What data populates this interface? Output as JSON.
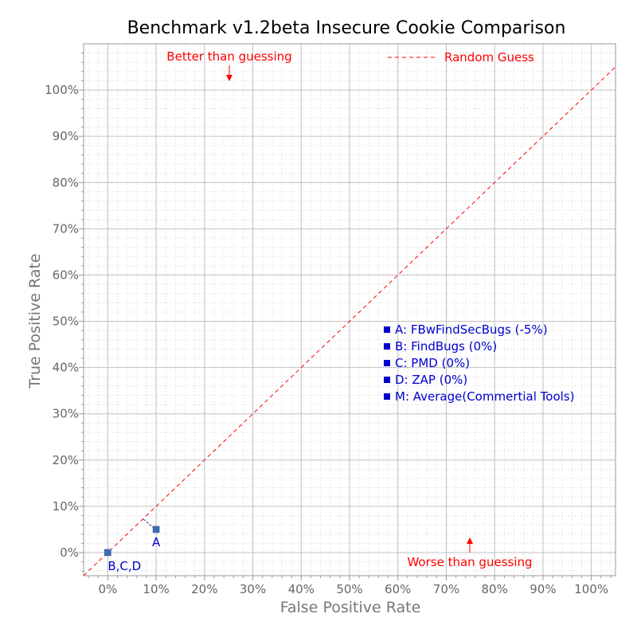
{
  "chart_data": {
    "type": "scatter",
    "title": "Benchmark v1.2beta Insecure Cookie Comparison",
    "xlabel": "False Positive Rate",
    "ylabel": "True Positive Rate",
    "xlim": [
      -5,
      105
    ],
    "ylim": [
      -5,
      110
    ],
    "x_ticks": [
      "0%",
      "10%",
      "20%",
      "30%",
      "40%",
      "50%",
      "60%",
      "70%",
      "80%",
      "90%",
      "100%"
    ],
    "y_ticks": [
      "0%",
      "10%",
      "20%",
      "30%",
      "40%",
      "50%",
      "60%",
      "70%",
      "80%",
      "90%",
      "100%"
    ],
    "grid": true,
    "reference_line": {
      "name": "Random Guess",
      "from": [
        -5,
        -5
      ],
      "to": [
        105,
        105
      ],
      "color": "#ff0000",
      "style": "dashed"
    },
    "points": [
      {
        "label": "A",
        "x": 10,
        "y": 5
      },
      {
        "label": "B,C,D",
        "x": 0,
        "y": 0
      }
    ],
    "annotations": {
      "better": "Better than guessing",
      "worse": "Worse than guessing"
    },
    "legend_placement": "top-right",
    "tool_list": [
      "A: FBwFindSecBugs (-5%)",
      "B: FindBugs (0%)",
      "C: PMD (0%)",
      "D: ZAP (0%)",
      "M: Average(Commertial Tools)"
    ],
    "colors": {
      "point": "#3e6bb5",
      "reference": "#ff0000",
      "labels": "#0000cc",
      "grid_major": "#c0c0c0",
      "grid_minor": "#e8e8e8"
    }
  }
}
